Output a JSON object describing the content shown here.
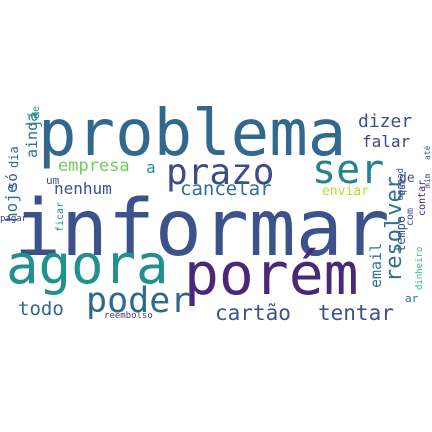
{
  "words": {
    "informar": "informar",
    "problema": "problema",
    "agora": "agora",
    "porem": "porém",
    "poder": "poder",
    "prazo": "prazo",
    "ser": "ser",
    "resolver": "resolver",
    "dizer": "dizer",
    "falar": "falar",
    "empresa": "empresa",
    "nenhum": "nenhum",
    "cancelar": "cancelar",
    "enviar": "enviar",
    "cartao": "cartão",
    "tentar": "tentar",
    "todo": "todo",
    "reembolso": "reembolso",
    "email": "email",
    "ainda": "ainda",
    "hoje": "hoje",
    "pagar": "pagar",
    "ficar": "ficar",
    "contar": "contar",
    "dinheiro": "dinheiro",
    "de": "de",
    "tempo": "tempo",
    "pedido": "pedido",
    "so": "só",
    "dia": "dia",
    "ja": "já",
    "um": "um",
    "ate": "até",
    "mim": "mim",
    "a": "a",
    "e": "e",
    "ar": "ar",
    "com": "com",
    "que": "que"
  },
  "colors": {
    "informar": "#3b528b",
    "problema": "#31688e",
    "agora": "#21918c",
    "porem": "#482878",
    "poder": "#31688e",
    "prazo": "#3e4a89",
    "ser": "#26828e",
    "resolver": "#2c728e",
    "dizer": "#3b528b",
    "falar": "#414487",
    "empresa": "#6ece58",
    "nenhum": "#3b528b",
    "cancelar": "#2c728e",
    "enviar": "#b5de2b",
    "cartao": "#3b528b",
    "tentar": "#3b528b",
    "todo": "#31688e",
    "reembolso": "#443983",
    "email": "#2a788e",
    "ainda": "#2c728e",
    "hoje": "#2a788e",
    "pagar": "#443983",
    "ficar": "#26828e",
    "contar": "#482878",
    "dinheiro": "#35b779",
    "small": "#3b528b"
  }
}
